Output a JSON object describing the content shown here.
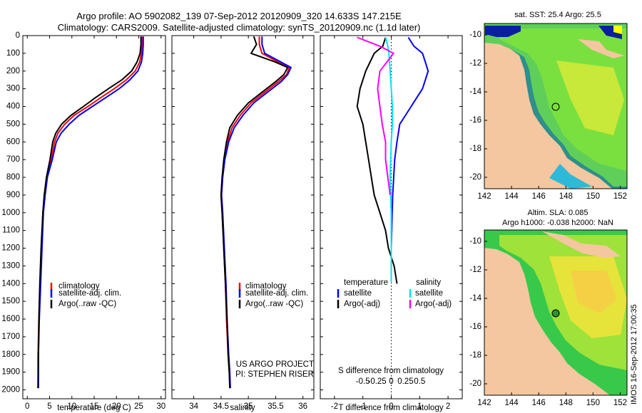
{
  "header": {
    "line1": "Argo profile: AO 5902082_139 07-Sep-2012 20120909_320 14.633S 147.215E",
    "line2": "Climatology: CARS2009. Satellite-adjusted climatology: synTS_20120909.nc (1.1d later)"
  },
  "colors": {
    "climatology": "#ff0000",
    "satellite": "#0000ff",
    "argo": "#000000",
    "sat_salinity": "#00e5ee",
    "argo_salinity": "#ff00ff",
    "land": "#f5c7a0",
    "deep_blue": "#0a1fa0"
  },
  "chart_data": [
    {
      "id": "temperature",
      "type": "line",
      "xlabel": "temperature (deg C)",
      "ylabel": "",
      "xlim": [
        -1,
        31
      ],
      "ylim": [
        2050,
        0
      ],
      "xticks": [
        "0",
        "5",
        "10",
        "15",
        "20",
        "25",
        "30"
      ],
      "xtick_values": [
        0,
        5,
        10,
        15,
        20,
        25,
        30
      ],
      "yticks": [
        "0",
        "100",
        "200",
        "300",
        "400",
        "500",
        "600",
        "700",
        "800",
        "900",
        "1000",
        "1100",
        "1200",
        "1300",
        "1400",
        "1500",
        "1600",
        "1700",
        "1800",
        "1900",
        "2000"
      ],
      "ytick_values": [
        0,
        100,
        200,
        300,
        400,
        500,
        600,
        700,
        800,
        900,
        1000,
        1100,
        1200,
        1300,
        1400,
        1500,
        1600,
        1700,
        1800,
        1900,
        2000
      ],
      "legend": [
        "climatology",
        "satellite-adj. clim.",
        "Argo(..raw -QC)"
      ],
      "series": [
        {
          "name": "climatology",
          "color_key": "climatology",
          "x": [
            25.7,
            25.7,
            25.6,
            25.2,
            24.2,
            22.2,
            19.5,
            16.5,
            13.6,
            10.5,
            8.4,
            6.9,
            6.1,
            5.4,
            4.4,
            3.9,
            3.5,
            3.2,
            2.9,
            2.6,
            2.4,
            2.4
          ],
          "y": [
            5,
            50,
            100,
            150,
            200,
            250,
            300,
            350,
            400,
            450,
            500,
            550,
            600,
            700,
            800,
            900,
            1000,
            1200,
            1400,
            1600,
            1800,
            1990
          ]
        },
        {
          "name": "satellite-adj. clim.",
          "color_key": "satellite",
          "x": [
            26.0,
            26.0,
            25.9,
            25.6,
            24.8,
            23.0,
            20.6,
            17.6,
            14.6,
            11.6,
            9.4,
            7.6,
            6.5,
            5.6,
            4.5,
            4.0,
            3.6,
            3.3,
            3.0,
            2.7,
            2.5,
            2.5
          ],
          "y": [
            5,
            50,
            100,
            150,
            200,
            250,
            300,
            350,
            400,
            450,
            500,
            550,
            600,
            700,
            800,
            900,
            1000,
            1200,
            1400,
            1600,
            1800,
            1990
          ]
        },
        {
          "name": "Argo(..raw -QC)",
          "color_key": "argo",
          "x": [
            25.5,
            25.5,
            25.3,
            24.6,
            23.4,
            21.2,
            18.2,
            15.3,
            12.6,
            9.8,
            7.7,
            6.4,
            5.7,
            5.1,
            4.3,
            3.8,
            3.5,
            3.1,
            2.8,
            2.6,
            2.5,
            2.4
          ],
          "y": [
            5,
            50,
            100,
            150,
            200,
            250,
            300,
            350,
            400,
            450,
            500,
            550,
            600,
            700,
            800,
            900,
            1000,
            1200,
            1400,
            1600,
            1800,
            1990
          ]
        }
      ]
    },
    {
      "id": "salinity",
      "type": "line",
      "xlabel": "salinity",
      "xlim": [
        33.6,
        36.2
      ],
      "ylim": [
        2050,
        0
      ],
      "xticks": [
        "34",
        "34.5",
        "35",
        "35.5",
        "36"
      ],
      "xtick_values": [
        34,
        34.5,
        35,
        35.5,
        36
      ],
      "legend": [
        "climatology",
        "satellite-adj. clim.",
        "Argo(..raw -QC)"
      ],
      "annotation": [
        "US ARGO PROJECT",
        "PI: STEPHEN RISER"
      ],
      "series": [
        {
          "name": "climatology",
          "color_key": "climatology",
          "x": [
            35.2,
            35.2,
            35.25,
            35.55,
            35.75,
            35.7,
            35.55,
            35.3,
            35.05,
            34.85,
            34.7,
            34.62,
            34.56,
            34.52,
            34.5,
            34.52,
            34.55,
            34.58,
            34.6,
            34.63,
            34.65,
            34.67
          ],
          "y": [
            5,
            50,
            100,
            150,
            180,
            220,
            260,
            320,
            380,
            450,
            520,
            600,
            700,
            800,
            900,
            1000,
            1200,
            1400,
            1600,
            1800,
            1900,
            1990
          ]
        },
        {
          "name": "satellite-adj. clim.",
          "color_key": "satellite",
          "x": [
            35.25,
            35.25,
            35.3,
            35.6,
            35.78,
            35.72,
            35.6,
            35.35,
            35.1,
            34.9,
            34.74,
            34.64,
            34.57,
            34.53,
            34.51,
            34.53,
            34.56,
            34.59,
            34.61,
            34.64,
            34.66,
            34.67
          ],
          "y": [
            5,
            50,
            100,
            150,
            180,
            220,
            260,
            320,
            380,
            450,
            520,
            600,
            700,
            800,
            900,
            1000,
            1200,
            1400,
            1600,
            1800,
            1900,
            1990
          ]
        },
        {
          "name": "Argo(..raw -QC)",
          "color_key": "argo",
          "x": [
            35.1,
            35.15,
            35.05,
            35.5,
            35.72,
            35.65,
            35.5,
            35.25,
            35.0,
            34.8,
            34.66,
            34.6,
            34.55,
            34.52,
            34.5,
            34.52,
            34.55,
            34.58,
            34.61,
            34.63,
            34.65,
            34.66
          ],
          "y": [
            5,
            50,
            100,
            150,
            180,
            220,
            260,
            320,
            380,
            450,
            520,
            600,
            700,
            800,
            900,
            1000,
            1200,
            1400,
            1600,
            1800,
            1900,
            1990
          ]
        }
      ]
    },
    {
      "id": "difference",
      "type": "line",
      "xlabel": "T difference from climatology",
      "xlabel_top": "S difference from climatology",
      "xlim": [
        -2.5,
        2.5
      ],
      "ylim": [
        2050,
        0
      ],
      "xticks": [
        "-2",
        "-1",
        "0",
        "1",
        "2"
      ],
      "xtick_values": [
        -2,
        -1,
        0,
        1,
        2
      ],
      "sticks": [
        "-0.5",
        "-0.25",
        "0",
        "0.25",
        "0.5"
      ],
      "stick_values": [
        -0.5,
        -0.25,
        0,
        0.25,
        0.5
      ],
      "legend_headers": [
        "temperature",
        "salinity"
      ],
      "legend": [
        "satellite",
        "Argo(-adj)",
        "satellite",
        "Argo(-adj)"
      ],
      "series": [
        {
          "name": "T satellite",
          "color_key": "satellite",
          "x": [
            0.6,
            0.8,
            1.1,
            1.2,
            1.3,
            1.2,
            1.1,
            0.9,
            0.7,
            0.5,
            0.3,
            0.2,
            0.12,
            0.05,
            0.0
          ],
          "y": [
            10,
            60,
            100,
            150,
            200,
            250,
            300,
            350,
            400,
            450,
            500,
            600,
            700,
            900,
            1200
          ]
        },
        {
          "name": "T Argo(-adj)",
          "color_key": "argo",
          "x": [
            -0.2,
            -0.3,
            -0.6,
            -0.9,
            -1.1,
            -1.2,
            -1.0,
            -0.9,
            -0.8,
            -0.7,
            -0.6,
            -0.4,
            -0.2,
            -0.1,
            0.0,
            0.1,
            0.2
          ],
          "y": [
            10,
            60,
            100,
            200,
            300,
            400,
            500,
            600,
            700,
            800,
            900,
            1000,
            1100,
            1200,
            1250,
            1300,
            1400
          ]
        },
        {
          "name": "S satellite",
          "color_key": "sat_salinity",
          "x": [
            -0.05,
            -0.03,
            -0.02,
            -0.01,
            0,
            0.01,
            0.01,
            0,
            -0.01,
            0,
            0,
            0
          ],
          "y": [
            10,
            60,
            100,
            200,
            300,
            400,
            500,
            600,
            800,
            1000,
            1200,
            1390
          ]
        },
        {
          "name": "S Argo(-adj)",
          "color_key": "argo_salinity",
          "x": [
            -0.3,
            -0.1,
            0.02,
            -0.1,
            -0.12,
            -0.1,
            -0.08,
            -0.05,
            -0.05,
            -0.03,
            -0.01
          ],
          "y": [
            10,
            60,
            100,
            200,
            300,
            400,
            500,
            600,
            700,
            800,
            900
          ]
        }
      ]
    }
  ],
  "maps": {
    "sst": {
      "title": "sat. SST: 25.4 Argo: 25.5",
      "lon_ticks": [
        "142",
        "144",
        "146",
        "148",
        "150",
        "152"
      ],
      "lon_values": [
        142,
        144,
        146,
        148,
        150,
        152
      ],
      "lat_ticks": [
        "-10",
        "-12",
        "-14",
        "-16",
        "-18",
        "-20"
      ],
      "lat_values": [
        -10,
        -12,
        -14,
        -16,
        -18,
        -20
      ],
      "lon_range": [
        142,
        152.5
      ],
      "lat_range": [
        -20.8,
        -9.2
      ],
      "argo_lon": 147.215,
      "argo_lat": -14.633
    },
    "sla": {
      "title_line1": "Altim. SLA: 0.085",
      "title_line2": "Argo h1000: -0.038 h2000: NaN",
      "lon_ticks": [
        "142",
        "144",
        "146",
        "148",
        "150",
        "152"
      ],
      "lon_values": [
        142,
        144,
        146,
        148,
        150,
        152
      ],
      "lat_ticks": [
        "-10",
        "-12",
        "-14",
        "-16",
        "-18",
        "-20"
      ],
      "lat_values": [
        -10,
        -12,
        -14,
        -16,
        -18,
        -20
      ],
      "lon_range": [
        142,
        152.5
      ],
      "lat_range": [
        -20.8,
        -9.2
      ],
      "argo_lon": 147.215,
      "argo_lat": -14.633
    }
  },
  "footer": {
    "stamp": "IMOS 16-Sep-2012 17:00:35"
  }
}
